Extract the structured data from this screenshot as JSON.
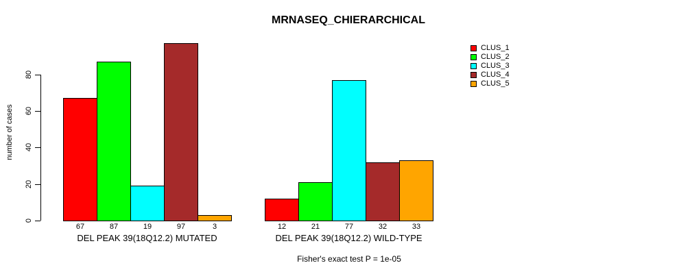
{
  "chart_data": {
    "type": "bar",
    "title": "MRNASEQ_CHIERARCHICAL",
    "ylabel": "number of cases",
    "xlabel": "",
    "annotation": "Fisher's exact test P = 1e-05",
    "yticks": [
      0,
      20,
      40,
      60,
      80
    ],
    "ylim": [
      0,
      100
    ],
    "grid": false,
    "legend_position": "top-right",
    "categories": [
      "DEL PEAK 39(18Q12.2) MUTATED",
      "DEL PEAK 39(18Q12.2) WILD-TYPE"
    ],
    "series": [
      {
        "name": "CLUS_1",
        "color": "#ff0000",
        "values": [
          67,
          12
        ]
      },
      {
        "name": "CLUS_2",
        "color": "#00ff00",
        "values": [
          87,
          21
        ]
      },
      {
        "name": "CLUS_3",
        "color": "#00ffff",
        "values": [
          19,
          77
        ]
      },
      {
        "name": "CLUS_4",
        "color": "#a52a2a",
        "values": [
          97,
          32
        ]
      },
      {
        "name": "CLUS_5",
        "color": "#ffa500",
        "values": [
          3,
          33
        ]
      }
    ],
    "bar_value_labels": [
      [
        67,
        87,
        19,
        97,
        3
      ],
      [
        12,
        21,
        77,
        32,
        33
      ]
    ],
    "axis_color": "#000000",
    "background_color": "#ffffff"
  }
}
